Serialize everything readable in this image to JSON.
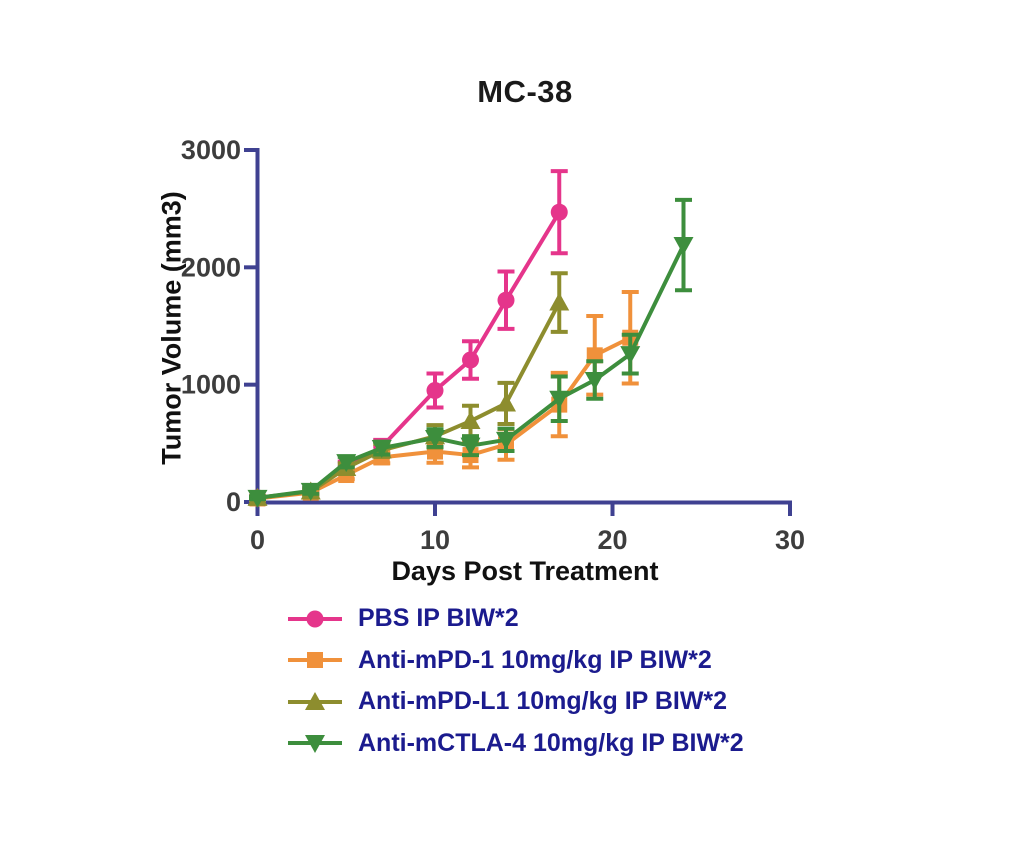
{
  "chart_data": {
    "type": "line",
    "title": "MC-38",
    "xlabel": "Days Post Treatment",
    "ylabel": "Tumor Volume (mm3)",
    "xlim": [
      0,
      30
    ],
    "ylim": [
      0,
      3000
    ],
    "xticks": [
      0,
      10,
      20,
      30
    ],
    "yticks": [
      0,
      1000,
      2000,
      3000
    ],
    "grid": false,
    "error_bars": true,
    "legend_position": "below-left",
    "series": [
      {
        "id": "pbs",
        "name": "PBS IP BIW*2",
        "marker": "circle",
        "color": "#E5358B",
        "x": [
          0,
          3,
          5,
          7,
          10,
          12,
          14,
          17
        ],
        "y": [
          35,
          90,
          300,
          470,
          950,
          1210,
          1720,
          2470
        ],
        "err": [
          15,
          30,
          45,
          60,
          145,
          160,
          245,
          350
        ]
      },
      {
        "id": "anti-mpd1",
        "name": "Anti-mPD-1 10mg/kg IP BIW*2",
        "marker": "square",
        "color": "#F0913B",
        "x": [
          0,
          3,
          5,
          7,
          10,
          12,
          14,
          17,
          19,
          21
        ],
        "y": [
          30,
          80,
          230,
          380,
          430,
          400,
          490,
          830,
          1250,
          1400
        ],
        "err": [
          12,
          20,
          35,
          50,
          95,
          105,
          130,
          270,
          335,
          390
        ]
      },
      {
        "id": "anti-mpdl1",
        "name": "Anti-mPD-L1 10mg/kg IP BIW*2",
        "marker": "triangle-up",
        "color": "#8D8D2E",
        "x": [
          0,
          3,
          5,
          7,
          10,
          12,
          14,
          17
        ],
        "y": [
          35,
          90,
          290,
          440,
          560,
          690,
          840,
          1700
        ],
        "err": [
          12,
          25,
          40,
          55,
          95,
          130,
          175,
          250
        ]
      },
      {
        "id": "anti-mctla4",
        "name": "Anti-mCTLA-4 10mg/kg IP BIW*2",
        "marker": "triangle-down",
        "color": "#3D8E3D",
        "x": [
          0,
          3,
          5,
          7,
          10,
          12,
          14,
          17,
          19,
          21,
          24
        ],
        "y": [
          35,
          95,
          340,
          460,
          545,
          480,
          530,
          880,
          1040,
          1260,
          2190
        ],
        "err": [
          12,
          25,
          45,
          55,
          75,
          80,
          95,
          190,
          160,
          165,
          385
        ]
      }
    ]
  },
  "colors": {
    "background": "#FFFFFF",
    "axis": "#3F4191",
    "tick_label": "#3D3D3D",
    "title": "#1A1A1A",
    "axis_label": "#111111",
    "legend_text": "#1B1B8E"
  }
}
